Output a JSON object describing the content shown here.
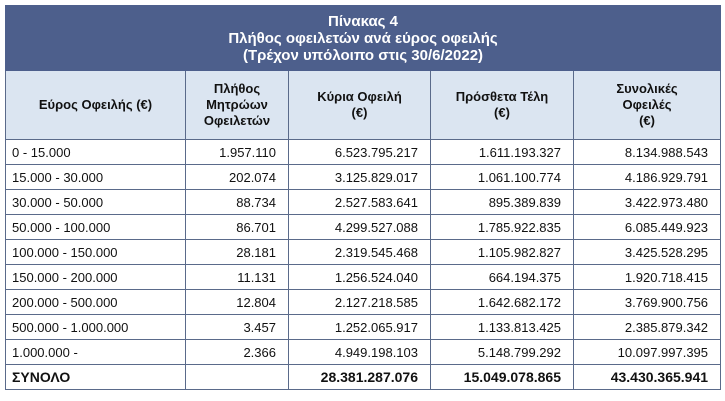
{
  "header": {
    "title_lines": [
      "Πίνακας 4",
      "Πλήθος οφειλετών ανά εύρος οφειλής",
      "(Τρέχον υπόλοιπο στις 30/6/2022)"
    ]
  },
  "table": {
    "columns": [
      [
        "Εύρος Οφειλής (€)"
      ],
      [
        "Πλήθος",
        "Μητρώων",
        "Οφειλετών"
      ],
      [
        "Κύρια Οφειλή",
        "(€)"
      ],
      [
        "Πρόσθετα Τέλη",
        "(€)"
      ],
      [
        "Συνολικές",
        "Οφειλές",
        "(€)"
      ]
    ],
    "rows": [
      [
        "0 - 15.000",
        "1.957.110",
        "6.523.795.217",
        "1.611.193.327",
        "8.134.988.543"
      ],
      [
        "15.000 - 30.000",
        "202.074",
        "3.125.829.017",
        "1.061.100.774",
        "4.186.929.791"
      ],
      [
        "30.000 - 50.000",
        "88.734",
        "2.527.583.641",
        "895.389.839",
        "3.422.973.480"
      ],
      [
        "50.000 - 100.000",
        "86.701",
        "4.299.527.088",
        "1.785.922.835",
        "6.085.449.923"
      ],
      [
        "100.000 - 150.000",
        "28.181",
        "2.319.545.468",
        "1.105.982.827",
        "3.425.528.295"
      ],
      [
        "150.000 - 200.000",
        "11.131",
        "1.256.524.040",
        "664.194.375",
        "1.920.718.415"
      ],
      [
        "200.000 - 500.000",
        "12.804",
        "2.127.218.585",
        "1.642.682.172",
        "3.769.900.756"
      ],
      [
        "500.000 - 1.000.000",
        "3.457",
        "1.252.065.917",
        "1.133.813.425",
        "2.385.879.342"
      ],
      [
        "1.000.000 -",
        "2.366",
        "4.949.198.103",
        "5.148.799.292",
        "10.097.997.395"
      ]
    ],
    "total": [
      "ΣΥΝΟΛΟ",
      "",
      "28.381.287.076",
      "15.049.078.865",
      "43.430.365.941"
    ]
  }
}
